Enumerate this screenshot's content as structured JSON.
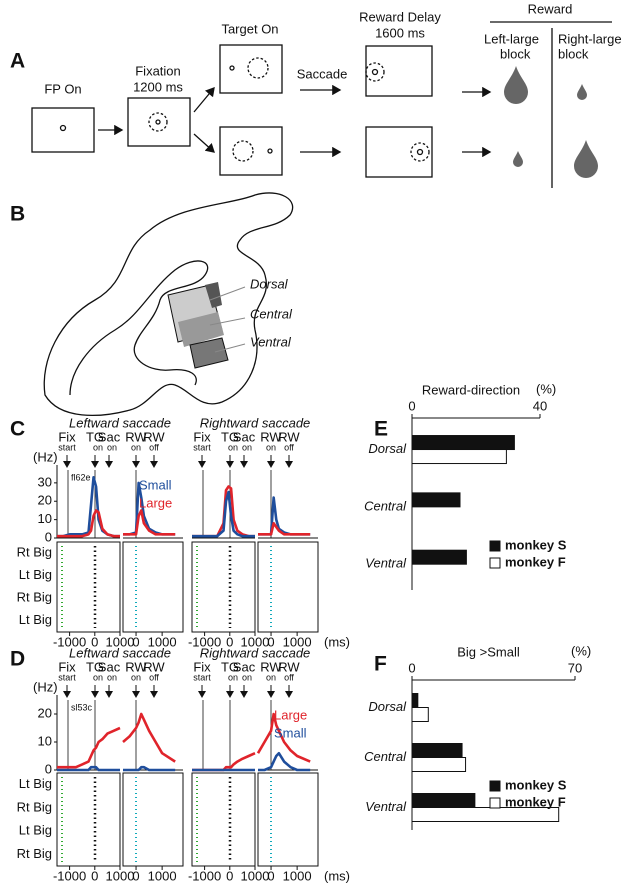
{
  "panel_labels": [
    "A",
    "B",
    "C",
    "D",
    "E",
    "F"
  ],
  "panel_a": {
    "fp_on": "FP On",
    "fixation": "Fixation",
    "fixation_time": "1200 ms",
    "target_on": "Target On",
    "saccade": "Saccade",
    "reward_delay": "Reward Delay",
    "delay_time": "1600 ms",
    "reward": "Reward",
    "left_block": [
      "Left-large",
      "block"
    ],
    "right_block": [
      "Right-large",
      "block"
    ]
  },
  "panel_b": {
    "regions": [
      "Dorsal",
      "Central",
      "Ventral"
    ]
  },
  "panel_c": {
    "titles": [
      "Leftward saccade",
      "Rightward saccade"
    ],
    "events": [
      [
        "Fix",
        "start"
      ],
      [
        "TG",
        "on"
      ],
      [
        "Sac",
        "on"
      ],
      [
        "RW",
        "on"
      ],
      [
        "RW",
        "off"
      ]
    ],
    "raster_rows": [
      "Rt Big",
      "Lt Big",
      "Rt Big",
      "Lt Big"
    ]
  },
  "panel_d": {
    "titles": [
      "Leftward saccade",
      "Rightward saccade"
    ],
    "events": [
      [
        "Fix",
        "start"
      ],
      [
        "TG",
        "on"
      ],
      [
        "Sac",
        "on"
      ],
      [
        "RW",
        "on"
      ],
      [
        "RW",
        "off"
      ]
    ],
    "raster_rows": [
      "Lt Big",
      "Rt Big",
      "Lt Big",
      "Rt Big"
    ]
  },
  "chart_data": [
    {
      "type": "line",
      "ylabel": "(Hz)",
      "annotation": "fl62e",
      "x": [
        -1500,
        -1250,
        -1000,
        -750,
        -500,
        -250,
        -150,
        -50,
        50,
        150,
        300,
        500,
        750,
        1000
      ],
      "xlim": [
        -1500,
        1000
      ],
      "xticks": [
        -1000,
        0,
        1000
      ],
      "ylim": [
        0,
        37
      ],
      "yticks": [
        0,
        10,
        20,
        30
      ],
      "series": [
        {
          "color": "#1f4e9c",
          "values": [
            1,
            1,
            2,
            2,
            2,
            3,
            18,
            33,
            28,
            10,
            4,
            2,
            1,
            1
          ]
        },
        {
          "color": "#e0242b",
          "values": [
            1,
            1,
            1,
            1,
            1,
            2,
            4,
            12,
            15,
            14,
            5,
            2,
            1,
            1
          ]
        }
      ]
    },
    {
      "type": "line",
      "x": [
        -500,
        -250,
        0,
        100,
        200,
        300,
        500,
        750,
        1000,
        1500
      ],
      "xlim": [
        -500,
        1800
      ],
      "xticks": [
        0,
        1000
      ],
      "ylim": [
        0,
        37
      ],
      "series": [
        {
          "name": "Small",
          "color": "#1f4e9c",
          "values": [
            2,
            2,
            3,
            30,
            22,
            12,
            5,
            3,
            2,
            2
          ]
        },
        {
          "name": "Large",
          "color": "#e0242b",
          "values": [
            2,
            2,
            2,
            12,
            15,
            8,
            4,
            2,
            2,
            2
          ]
        }
      ]
    },
    {
      "type": "line",
      "x": [
        -1500,
        -1250,
        -1000,
        -750,
        -500,
        -250,
        -150,
        -50,
        50,
        150,
        300,
        500,
        750,
        1000
      ],
      "xlim": [
        -1500,
        1000
      ],
      "xticks": [
        -1000,
        0,
        1000
      ],
      "ylim": [
        0,
        37
      ],
      "series": [
        {
          "color": "#e0242b",
          "values": [
            1,
            1,
            1,
            1,
            1,
            8,
            26,
            28,
            27,
            10,
            4,
            2,
            1,
            1
          ]
        },
        {
          "color": "#1f4e9c",
          "values": [
            1,
            1,
            1,
            1,
            1,
            4,
            20,
            25,
            12,
            4,
            2,
            1,
            1,
            1
          ]
        }
      ]
    },
    {
      "type": "line",
      "xlabel": "(ms)",
      "x": [
        -500,
        -250,
        0,
        100,
        200,
        300,
        500,
        750,
        1000,
        1500
      ],
      "xlim": [
        -500,
        1800
      ],
      "xticks": [
        0,
        1000
      ],
      "ylim": [
        0,
        37
      ],
      "series": [
        {
          "color": "#1f4e9c",
          "values": [
            2,
            2,
            2,
            22,
            10,
            5,
            3,
            2,
            2,
            2
          ]
        },
        {
          "color": "#e0242b",
          "values": [
            2,
            2,
            2,
            8,
            6,
            4,
            2,
            2,
            2,
            2
          ]
        }
      ]
    },
    {
      "type": "line",
      "ylabel": "(Hz)",
      "annotation": "sl53c",
      "x": [
        -1500,
        -1250,
        -1000,
        -750,
        -500,
        -250,
        -150,
        -50,
        50,
        150,
        300,
        500,
        750,
        1000
      ],
      "xlim": [
        -1500,
        1000
      ],
      "xticks": [
        -1000,
        0,
        1000
      ],
      "ylim": [
        0,
        25
      ],
      "yticks": [
        0,
        10,
        20
      ],
      "series": [
        {
          "color": "#e0242b",
          "values": [
            1,
            1,
            1,
            1,
            2,
            3,
            5,
            7,
            8,
            10,
            11,
            13,
            14,
            15
          ]
        },
        {
          "color": "#1f4e9c",
          "values": [
            0,
            0,
            0,
            0,
            0,
            0,
            1,
            1,
            1,
            0,
            0,
            0,
            0,
            0
          ]
        }
      ]
    },
    {
      "type": "line",
      "x": [
        -500,
        -250,
        0,
        100,
        200,
        300,
        500,
        750,
        1000,
        1500
      ],
      "xlim": [
        -500,
        1800
      ],
      "xticks": [
        0,
        1000
      ],
      "ylim": [
        0,
        25
      ],
      "series": [
        {
          "color": "#e0242b",
          "values": [
            10,
            12,
            15,
            17,
            20,
            18,
            14,
            10,
            6,
            3
          ]
        },
        {
          "color": "#1f4e9c",
          "values": [
            0,
            0,
            0,
            0,
            1,
            1,
            0,
            0,
            0,
            0
          ]
        }
      ]
    },
    {
      "type": "line",
      "x": [
        -1500,
        -1250,
        -1000,
        -750,
        -500,
        -250,
        -150,
        -50,
        50,
        150,
        300,
        500,
        750,
        1000
      ],
      "xlim": [
        -1500,
        1000
      ],
      "xticks": [
        -1000,
        0,
        1000
      ],
      "ylim": [
        0,
        25
      ],
      "series": [
        {
          "color": "#e0242b",
          "values": [
            0,
            0,
            0,
            0,
            0,
            0,
            1,
            1,
            1,
            2,
            3,
            4,
            5,
            6
          ]
        },
        {
          "color": "#1f4e9c",
          "values": [
            0,
            0,
            0,
            0,
            0,
            0,
            0,
            0,
            0,
            0,
            0,
            0,
            0,
            0
          ]
        }
      ]
    },
    {
      "type": "line",
      "xlabel": "(ms)",
      "x": [
        -500,
        -250,
        0,
        100,
        200,
        300,
        500,
        750,
        1000,
        1500
      ],
      "xlim": [
        -500,
        1800
      ],
      "xticks": [
        0,
        1000
      ],
      "ylim": [
        0,
        25
      ],
      "series": [
        {
          "name": "Large",
          "color": "#e0242b",
          "values": [
            6,
            10,
            14,
            20,
            16,
            14,
            10,
            7,
            5,
            3
          ]
        },
        {
          "name": "Small",
          "color": "#1f4e9c",
          "values": [
            0,
            0,
            1,
            3,
            5,
            6,
            3,
            1,
            0,
            0
          ]
        }
      ]
    },
    {
      "type": "bar",
      "title": "Reward-direction",
      "xlabel": "(%)",
      "categories": [
        "Dorsal",
        "Central",
        "Ventral"
      ],
      "xlim": [
        0,
        40
      ],
      "xticks": [
        0,
        40
      ],
      "series": [
        {
          "name": "monkey S",
          "color": "#111111",
          "values": [
            32,
            15,
            17
          ]
        },
        {
          "name": "monkey F",
          "color": "#ffffff",
          "values": [
            29.5,
            null,
            null
          ]
        }
      ]
    },
    {
      "type": "bar",
      "title": "Big >Small",
      "xlabel": "(%)",
      "categories": [
        "Dorsal",
        "Central",
        "Ventral"
      ],
      "xlim": [
        0,
        70
      ],
      "xticks": [
        0,
        70
      ],
      "series": [
        {
          "name": "monkey S",
          "color": "#111111",
          "values": [
            2.5,
            21.5,
            27
          ]
        },
        {
          "name": "monkey F",
          "color": "#ffffff",
          "values": [
            7,
            23,
            63
          ]
        }
      ]
    }
  ]
}
